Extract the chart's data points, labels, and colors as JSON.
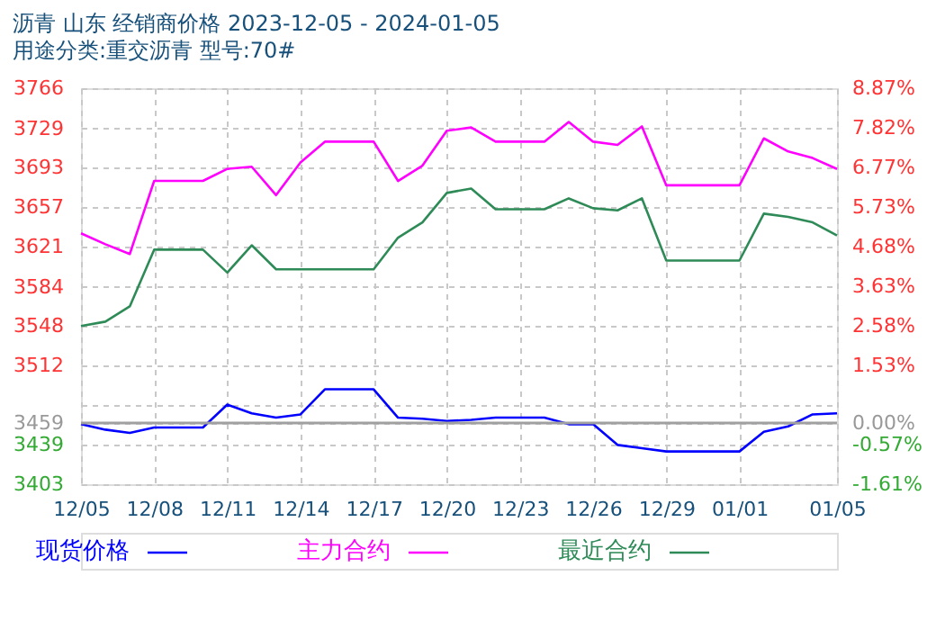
{
  "chart_data": {
    "type": "line",
    "title": "沥青  山东  经销商价格  2023-12-05 - 2024-01-05",
    "subtitle": "用途分类:重交沥青  型号:70#",
    "x": [
      "2023-12-05",
      "2023-12-06",
      "2023-12-07",
      "2023-12-08",
      "2023-12-09",
      "2023-12-10",
      "2023-12-11",
      "2023-12-12",
      "2023-12-13",
      "2023-12-14",
      "2023-12-15",
      "2023-12-16",
      "2023-12-17",
      "2023-12-18",
      "2023-12-19",
      "2023-12-20",
      "2023-12-21",
      "2023-12-22",
      "2023-12-23",
      "2023-12-24",
      "2023-12-25",
      "2023-12-26",
      "2023-12-27",
      "2023-12-28",
      "2023-12-29",
      "2023-12-30",
      "2023-12-31",
      "2024-01-01",
      "2024-01-02",
      "2024-01-03",
      "2024-01-04",
      "2024-01-05"
    ],
    "series": [
      {
        "name": "现货价格",
        "color": "#0000ff",
        "values": [
          3458,
          3453,
          3450,
          3455,
          3455,
          3455,
          3476,
          3468,
          3464,
          3467,
          3490,
          3490,
          3490,
          3464,
          3463,
          3461,
          3462,
          3464,
          3464,
          3464,
          3458,
          3458,
          3439,
          3436,
          3433,
          3433,
          3433,
          3433,
          3451,
          3456,
          3467,
          3468
        ]
      },
      {
        "name": "主力合约",
        "color": "#ff00ff",
        "values": [
          3633,
          3623,
          3614,
          3681,
          3681,
          3681,
          3692,
          3694,
          3668,
          3698,
          3717,
          3717,
          3717,
          3681,
          3695,
          3727,
          3730,
          3717,
          3717,
          3717,
          3735,
          3717,
          3714,
          3731,
          3677,
          3677,
          3677,
          3677,
          3720,
          3708,
          3702,
          3692
        ]
      },
      {
        "name": "最近合约",
        "color": "#2e8b57",
        "values": [
          3548,
          3552,
          3566,
          3618,
          3618,
          3618,
          3597,
          3622,
          3600,
          3600,
          3600,
          3600,
          3600,
          3629,
          3643,
          3670,
          3674,
          3655,
          3655,
          3655,
          3665,
          3656,
          3654,
          3665,
          3608,
          3608,
          3608,
          3608,
          3651,
          3648,
          3643,
          3631
        ]
      }
    ],
    "xlim": [
      "2023-12-05",
      "2024-01-05"
    ],
    "xticks": [
      {
        "value": "2023-12-05",
        "label": "12/05"
      },
      {
        "value": "2023-12-08",
        "label": "12/08"
      },
      {
        "value": "2023-12-11",
        "label": "12/11"
      },
      {
        "value": "2023-12-14",
        "label": "12/14"
      },
      {
        "value": "2023-12-17",
        "label": "12/17"
      },
      {
        "value": "2023-12-20",
        "label": "12/20"
      },
      {
        "value": "2023-12-23",
        "label": "12/23"
      },
      {
        "value": "2023-12-26",
        "label": "12/26"
      },
      {
        "value": "2023-12-29",
        "label": "12/29"
      },
      {
        "value": "2024-01-01",
        "label": "01/01"
      },
      {
        "value": "2024-01-05",
        "label": "01/05"
      }
    ],
    "ylim": [
      3403,
      3766
    ],
    "yticks": [
      3766,
      3729,
      3693,
      3657,
      3621,
      3584,
      3548,
      3512,
      {
        "value": 3475,
        "label": null
      },
      3459,
      3439,
      3403
    ],
    "y2lim": [
      -1.61,
      8.87
    ],
    "y2ticks": [
      {
        "value": 8.87,
        "label": "8.87%"
      },
      {
        "value": 7.82,
        "label": "7.82%"
      },
      {
        "value": 6.77,
        "label": "6.77%"
      },
      {
        "value": 5.73,
        "label": "5.73%"
      },
      {
        "value": 4.68,
        "label": "4.68%"
      },
      {
        "value": 3.63,
        "label": "3.63%"
      },
      {
        "value": 2.58,
        "label": "2.58%"
      },
      {
        "value": 1.53,
        "label": "1.53%"
      },
      {
        "value": 0,
        "label": "0.00%"
      },
      {
        "value": -0.57,
        "label": "-0.57%"
      },
      {
        "value": -1.61,
        "label": "-1.61%"
      }
    ],
    "ref_lines": [
      {
        "axis": "y",
        "value": 3459,
        "color": "#a0a0a0",
        "line_style": "solid"
      }
    ],
    "grid": true,
    "legend": "bottom",
    "marker": "none",
    "line_style": "solid"
  }
}
